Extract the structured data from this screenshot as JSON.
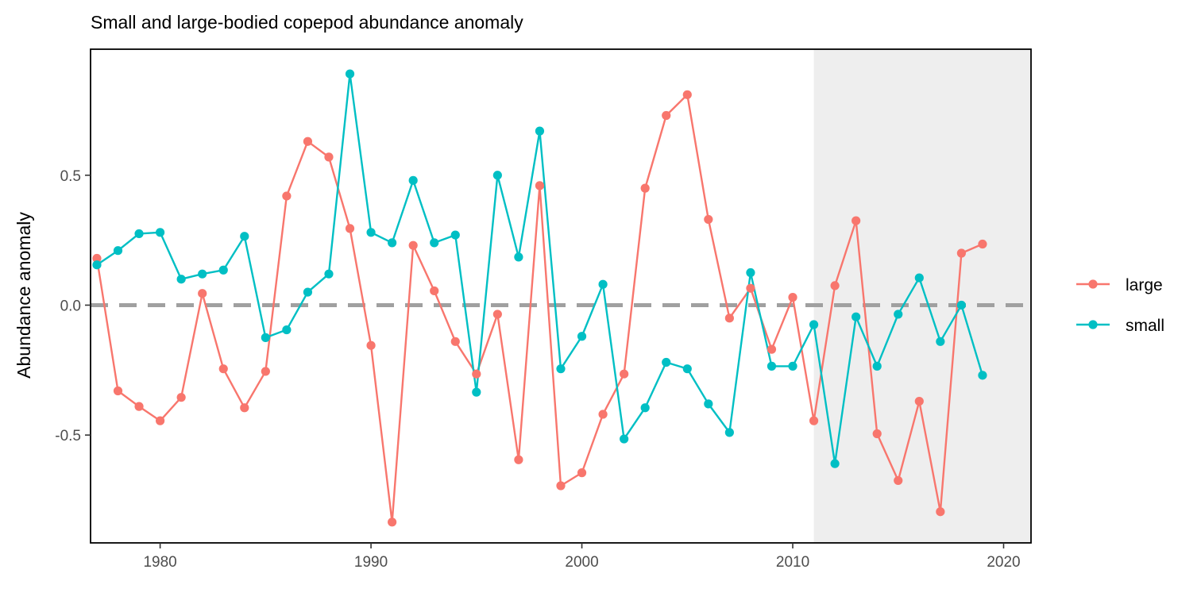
{
  "chart_data": {
    "type": "line",
    "title": "Small and large-bodied copepod abundance anomaly",
    "xlabel": "",
    "ylabel": "Abundance anomaly",
    "xlim": [
      1976.7,
      2021.3
    ],
    "ylim": [
      -0.915,
      0.985
    ],
    "x_ticks": [
      1980,
      1990,
      2000,
      2010,
      2020
    ],
    "y_ticks": [
      -0.5,
      0.0,
      0.5
    ],
    "y_tick_labels": [
      "-0.5",
      "0.0",
      "0.5"
    ],
    "x_tick_labels": [
      "1980",
      "1990",
      "2000",
      "2010",
      "2020"
    ],
    "grid": false,
    "legend_position": "right",
    "reference_line": {
      "y": 0,
      "style": "dashed",
      "color": "#a0a0a0"
    },
    "shaded_region": {
      "x_start": 2011,
      "x_end": 2021.3,
      "color": "#eeeeee"
    },
    "x": [
      1977,
      1978,
      1979,
      1980,
      1981,
      1982,
      1983,
      1984,
      1985,
      1986,
      1987,
      1988,
      1989,
      1990,
      1991,
      1992,
      1993,
      1994,
      1995,
      1996,
      1997,
      1998,
      1999,
      2000,
      2001,
      2002,
      2003,
      2004,
      2005,
      2006,
      2007,
      2008,
      2009,
      2010,
      2011,
      2012,
      2013,
      2014,
      2015,
      2016,
      2017,
      2018,
      2019
    ],
    "series": [
      {
        "name": "large",
        "color": "#F8766D",
        "values": [
          0.18,
          -0.33,
          -0.39,
          -0.445,
          -0.355,
          0.045,
          -0.245,
          -0.395,
          -0.255,
          0.42,
          0.63,
          0.57,
          0.295,
          -0.155,
          -0.835,
          0.23,
          0.055,
          -0.14,
          -0.265,
          -0.035,
          -0.595,
          0.46,
          -0.695,
          -0.645,
          -0.42,
          -0.265,
          0.45,
          0.73,
          0.81,
          0.33,
          -0.05,
          0.065,
          -0.17,
          0.03,
          -0.445,
          0.075,
          0.325,
          -0.495,
          -0.675,
          -0.37,
          -0.795,
          0.2,
          0.235
        ]
      },
      {
        "name": "small",
        "color": "#00BFC4",
        "values": [
          0.155,
          0.21,
          0.275,
          0.28,
          0.1,
          0.12,
          0.135,
          0.265,
          -0.125,
          -0.095,
          0.05,
          0.12,
          0.89,
          0.28,
          0.24,
          0.48,
          0.24,
          0.27,
          -0.335,
          0.5,
          0.185,
          0.67,
          -0.245,
          -0.12,
          0.08,
          -0.515,
          -0.395,
          -0.22,
          -0.245,
          -0.38,
          -0.49,
          0.125,
          -0.235,
          -0.235,
          -0.075,
          -0.61,
          -0.045,
          -0.235,
          -0.035,
          0.105,
          -0.14,
          0.0,
          -0.27
        ]
      }
    ]
  }
}
